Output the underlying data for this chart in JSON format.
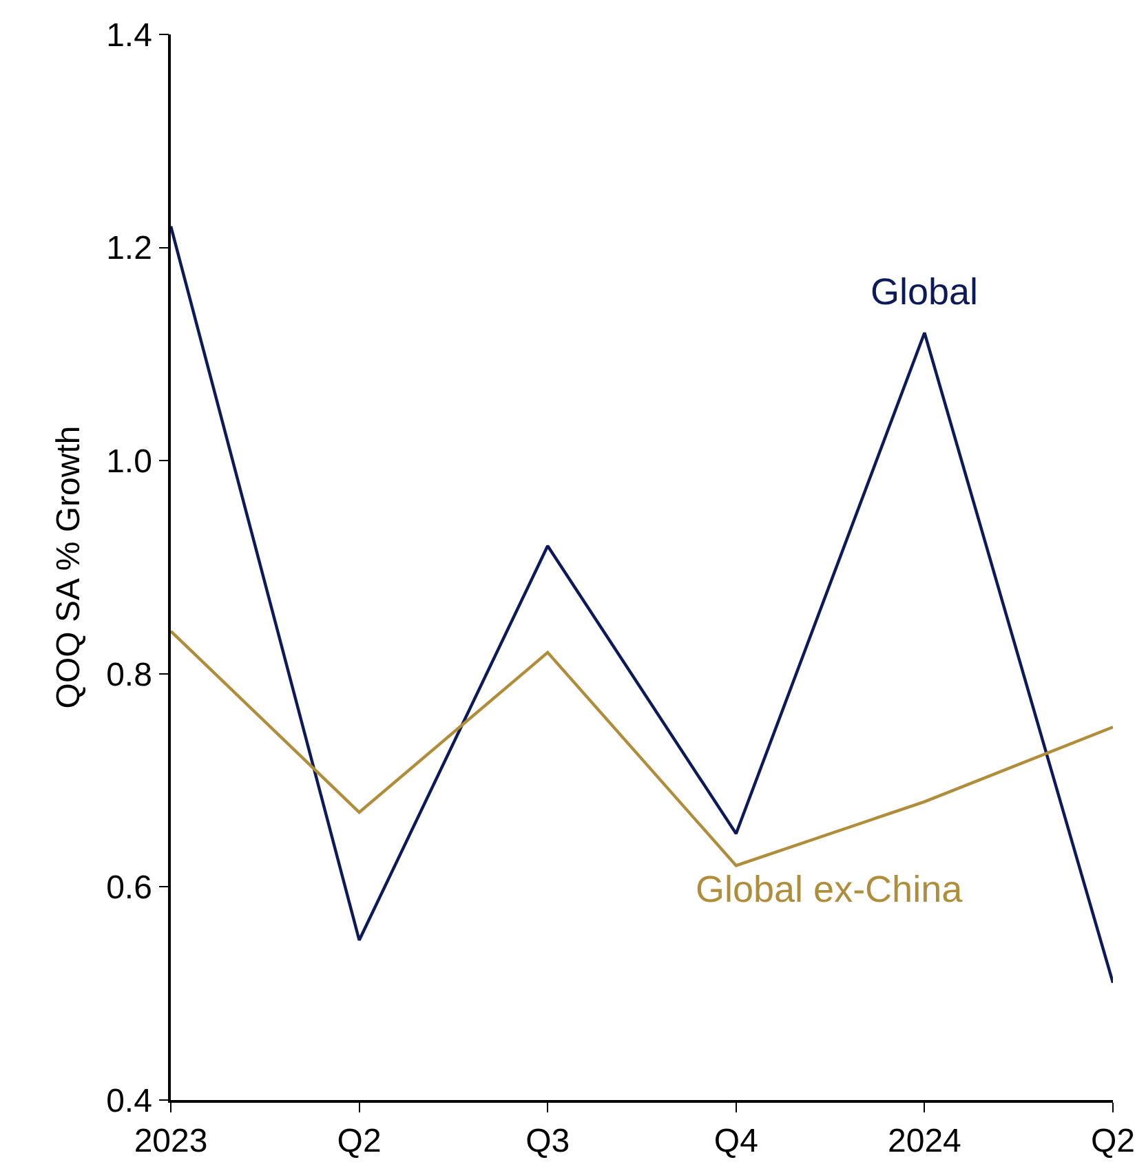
{
  "chart_data": {
    "type": "line",
    "ylabel": "QOQ SA % Growth",
    "categories": [
      "2023",
      "Q2",
      "Q3",
      "Q4",
      "2024",
      "Q2"
    ],
    "series": [
      {
        "name": "Global",
        "color": "#0c1a5a",
        "values": [
          1.22,
          0.55,
          0.92,
          0.65,
          1.12,
          0.51
        ]
      },
      {
        "name": "Global ex-China",
        "color": "#b08d3a",
        "values": [
          0.84,
          0.67,
          0.82,
          0.62,
          0.68,
          0.75
        ]
      }
    ],
    "ylim": [
      0.4,
      1.4
    ],
    "yticks": [
      {
        "value": 0.4,
        "label": "0.4"
      },
      {
        "value": 0.6,
        "label": "0.6"
      },
      {
        "value": 0.8,
        "label": "0.8"
      },
      {
        "value": 1.0,
        "label": "1.0"
      },
      {
        "value": 1.2,
        "label": "1.2"
      },
      {
        "value": 1.4,
        "label": "1.4"
      }
    ],
    "grid": false,
    "legend": false,
    "marker": "none",
    "line_style": "solid"
  }
}
